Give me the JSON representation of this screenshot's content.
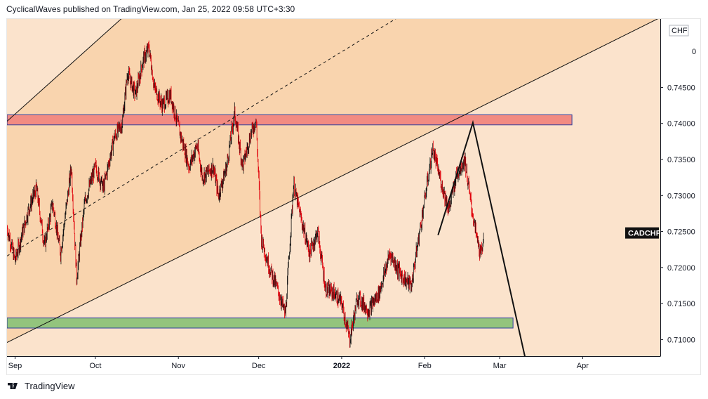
{
  "header": {
    "publish_text": "CyclicalWaves published on TradingView.com, Jan 25, 2022 09:58 UTC+3:30"
  },
  "footer": {
    "brand": "TradingView"
  },
  "colors": {
    "background_outer": "#fbe3cc",
    "channel_fill": "#f9d4ae",
    "resistance_zone": "#f28b82",
    "support_zone": "#93c47d",
    "zone_border": "#2e3f9e",
    "candle_down": "#e0000a",
    "candle_up": "#111111",
    "price_label_bg": "#111111",
    "price_label_text": "#ffffff"
  },
  "chart_data": {
    "type": "candlestick",
    "symbol": "CADCHF",
    "currency": "CHF",
    "y_ticks": [
      "0.74500",
      "0.74000",
      "0.73500",
      "0.73000",
      "0.72500",
      "0.72000",
      "0.71500",
      "0.71000"
    ],
    "y_tick_values": [
      0.745,
      0.74,
      0.735,
      0.73,
      0.725,
      0.72,
      0.715,
      0.71
    ],
    "x_ticks": [
      "Sep",
      "Oct",
      "Nov",
      "Dec",
      "2022",
      "Feb",
      "Mar",
      "Apr"
    ],
    "x_tick_dates": [
      "2021-09-01",
      "2021-10-01",
      "2021-11-01",
      "2021-12-01",
      "2022-01-01",
      "2022-02-01",
      "2022-03-01",
      "2022-04-01"
    ],
    "xlim": [
      "2021-08-29",
      "2022-04-30"
    ],
    "ylim": [
      0.7077,
      0.7545
    ],
    "last_price_label": "CADCHF",
    "last_price": 0.7248,
    "price_path": [
      [
        "2021-08-29",
        0.7255
      ],
      [
        "2021-09-01",
        0.721
      ],
      [
        "2021-09-06",
        0.728
      ],
      [
        "2021-09-09",
        0.731
      ],
      [
        "2021-09-12",
        0.723
      ],
      [
        "2021-09-15",
        0.729
      ],
      [
        "2021-09-18",
        0.722
      ],
      [
        "2021-09-22",
        0.734
      ],
      [
        "2021-09-24",
        0.7185
      ],
      [
        "2021-09-27",
        0.729
      ],
      [
        "2021-10-01",
        0.734
      ],
      [
        "2021-10-04",
        0.731
      ],
      [
        "2021-10-08",
        0.738
      ],
      [
        "2021-10-11",
        0.74
      ],
      [
        "2021-10-13",
        0.747
      ],
      [
        "2021-10-16",
        0.744
      ],
      [
        "2021-10-19",
        0.749
      ],
      [
        "2021-10-21",
        0.7505
      ],
      [
        "2021-10-23",
        0.745
      ],
      [
        "2021-10-26",
        0.7425
      ],
      [
        "2021-10-29",
        0.744
      ],
      [
        "2021-11-01",
        0.7395
      ],
      [
        "2021-11-05",
        0.734
      ],
      [
        "2021-11-08",
        0.737
      ],
      [
        "2021-11-10",
        0.7325
      ],
      [
        "2021-11-14",
        0.734
      ],
      [
        "2021-11-16",
        0.73
      ],
      [
        "2021-11-19",
        0.734
      ],
      [
        "2021-11-22",
        0.7415
      ],
      [
        "2021-11-25",
        0.734
      ],
      [
        "2021-11-28",
        0.7385
      ],
      [
        "2021-11-30",
        0.7405
      ],
      [
        "2021-12-02",
        0.724
      ],
      [
        "2021-12-05",
        0.72
      ],
      [
        "2021-12-08",
        0.717
      ],
      [
        "2021-12-11",
        0.7135
      ],
      [
        "2021-12-14",
        0.7315
      ],
      [
        "2021-12-17",
        0.7265
      ],
      [
        "2021-12-20",
        0.722
      ],
      [
        "2021-12-23",
        0.725
      ],
      [
        "2021-12-26",
        0.717
      ],
      [
        "2021-12-29",
        0.7165
      ],
      [
        "2022-01-01",
        0.715
      ],
      [
        "2022-01-04",
        0.71
      ],
      [
        "2022-01-07",
        0.716
      ],
      [
        "2022-01-11",
        0.714
      ],
      [
        "2022-01-15",
        0.7165
      ],
      [
        "2022-01-19",
        0.722
      ],
      [
        "2022-01-23",
        0.719
      ],
      [
        "2022-01-27",
        0.7175
      ],
      [
        "2022-02-01",
        0.7295
      ],
      [
        "2022-02-04",
        0.7365
      ],
      [
        "2022-02-07",
        0.732
      ],
      [
        "2022-02-10",
        0.728
      ],
      [
        "2022-02-13",
        0.733
      ],
      [
        "2022-02-16",
        0.735
      ],
      [
        "2022-02-18",
        0.7295
      ],
      [
        "2022-02-20",
        0.725
      ],
      [
        "2022-02-22",
        0.7215
      ],
      [
        "2022-02-23",
        0.7248
      ]
    ],
    "zones": [
      {
        "name": "resistance",
        "from": "2021-08-29",
        "to": "2022-03-28",
        "y_low": 0.7398,
        "y_high": 0.7412
      },
      {
        "name": "support",
        "from": "2021-08-29",
        "to": "2022-03-06",
        "y_low": 0.7116,
        "y_high": 0.713
      }
    ],
    "channel": {
      "upper": [
        [
          "2021-08-29",
          0.7403
        ],
        [
          "2021-11-03",
          0.7623
        ]
      ],
      "middle": [
        [
          "2021-08-29",
          0.7216
        ],
        [
          "2022-03-30",
          0.7699
        ]
      ],
      "lower": [
        [
          "2021-08-29",
          0.7096
        ],
        [
          "2022-04-30",
          0.7547
        ]
      ]
    },
    "projection": [
      [
        "2022-02-06",
        0.7245
      ],
      [
        "2022-02-19",
        0.7401
      ],
      [
        "2022-03-11",
        0.7067
      ],
      [
        "2022-03-12",
        0.7072
      ]
    ]
  }
}
